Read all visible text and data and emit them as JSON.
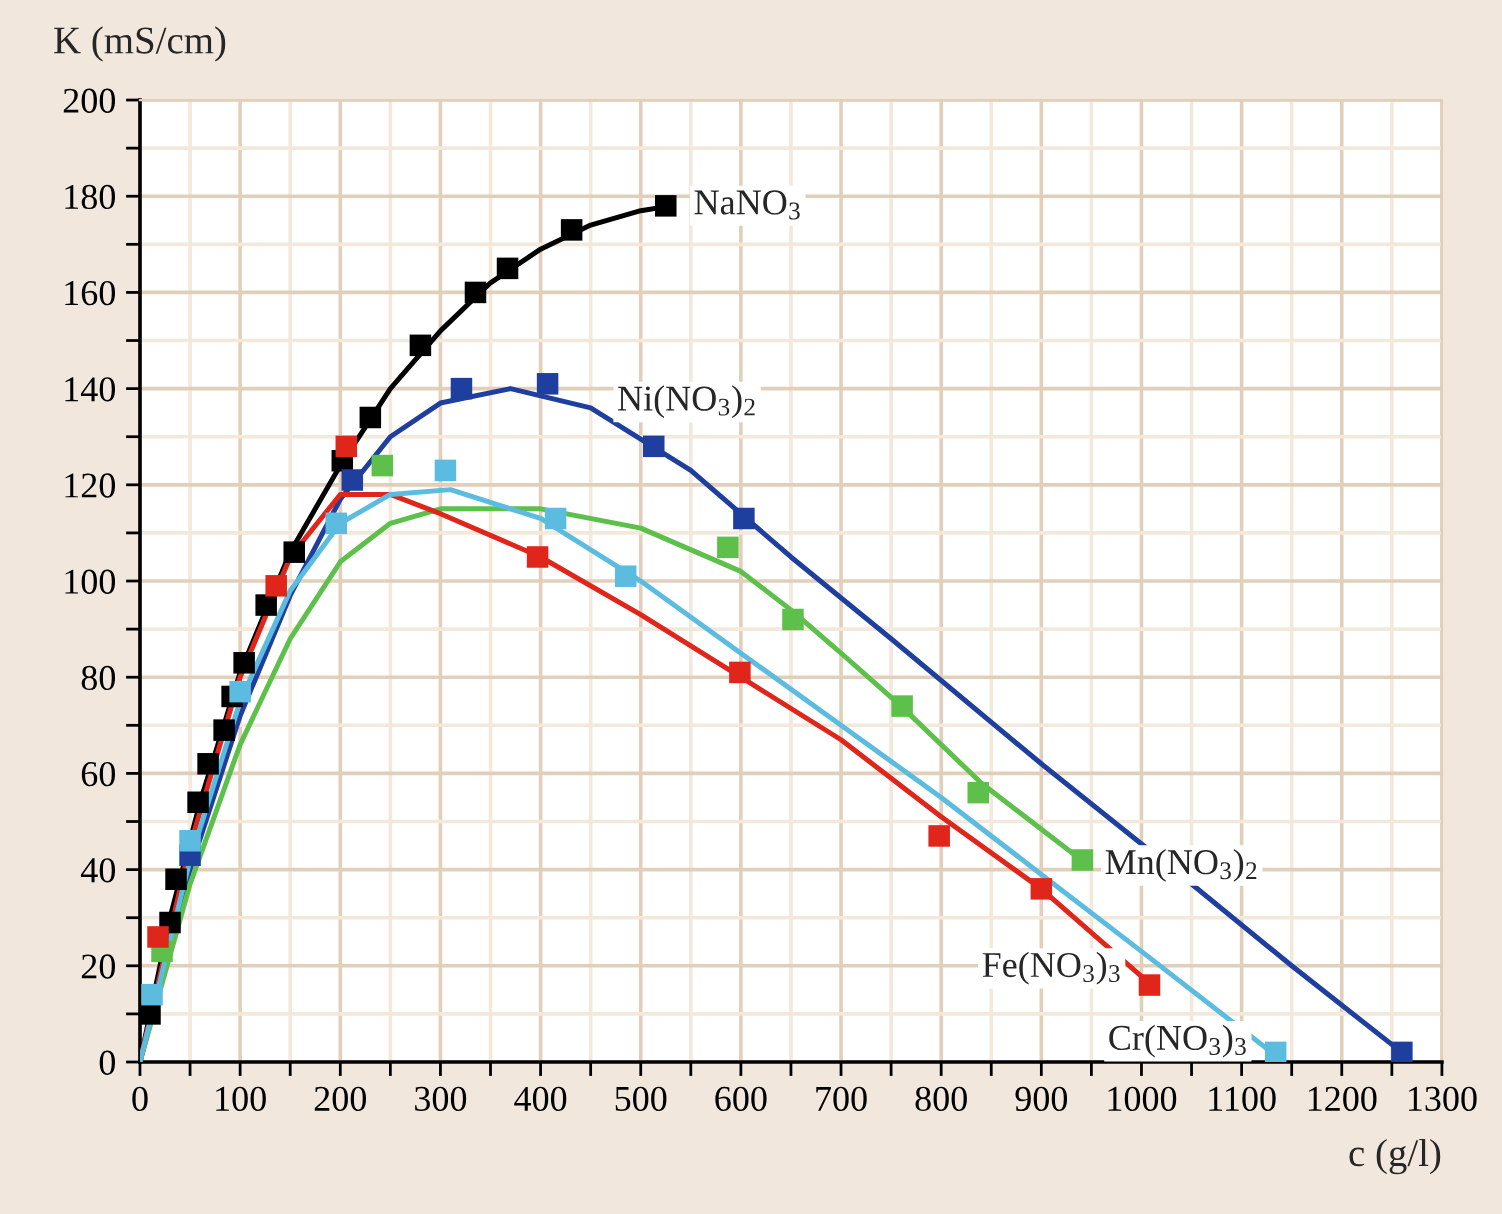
{
  "chart_data": {
    "type": "scatter",
    "xlabel": "c (g/l)",
    "ylabel": "K (mS/cm)",
    "xlim": [
      0,
      1300
    ],
    "ylim": [
      0,
      200
    ],
    "xticks": [
      0,
      {
        "value": 50,
        "label": null
      },
      100,
      {
        "value": 150,
        "label": null
      },
      200,
      {
        "value": 250,
        "label": null
      },
      300,
      {
        "value": 350,
        "label": null
      },
      400,
      {
        "value": 450,
        "label": null
      },
      500,
      {
        "value": 550,
        "label": null
      },
      600,
      {
        "value": 650,
        "label": null
      },
      700,
      {
        "value": 750,
        "label": null
      },
      800,
      {
        "value": 850,
        "label": null
      },
      900,
      {
        "value": 950,
        "label": null
      },
      1000,
      {
        "value": 1050,
        "label": null
      },
      1100,
      {
        "value": 1150,
        "label": null
      },
      1200,
      {
        "value": 1250,
        "label": null
      },
      1300
    ],
    "yticks": [
      0,
      {
        "value": 10,
        "label": null
      },
      20,
      {
        "value": 30,
        "label": null
      },
      40,
      {
        "value": 50,
        "label": null
      },
      60,
      {
        "value": 70,
        "label": null
      },
      80,
      {
        "value": 90,
        "label": null
      },
      100,
      {
        "value": 110,
        "label": null
      },
      120,
      {
        "value": 130,
        "label": null
      },
      140,
      {
        "value": 150,
        "label": null
      },
      160,
      {
        "value": 170,
        "label": null
      },
      180,
      {
        "value": 190,
        "label": null
      },
      200
    ],
    "grid": true,
    "legend": false,
    "line_style": "solid",
    "series": [
      {
        "type": "line",
        "color": "#000000",
        "marker": "none",
        "x": [
          0,
          30,
          60,
          100,
          150,
          200,
          250,
          300,
          350,
          400,
          450,
          500,
          530
        ],
        "values": [
          0,
          30,
          54,
          81,
          106,
          124,
          140,
          152,
          162,
          169,
          174,
          177,
          178
        ]
      },
      {
        "type": "line",
        "color": "#1f3f9f",
        "marker": "none",
        "x": [
          0,
          50,
          100,
          150,
          200,
          250,
          300,
          370,
          450,
          550,
          650,
          750,
          900,
          1050,
          1150,
          1260
        ],
        "values": [
          0,
          40,
          72,
          97,
          117,
          130,
          137,
          140,
          136,
          123,
          105,
          88,
          62,
          37,
          20,
          2
        ]
      },
      {
        "type": "line",
        "color": "#5dc04a",
        "marker": "none",
        "x": [
          0,
          50,
          100,
          150,
          200,
          250,
          300,
          400,
          500,
          600,
          650,
          700,
          760,
          840,
          940
        ],
        "values": [
          0,
          37,
          66,
          88,
          104,
          112,
          115,
          115,
          111,
          102,
          94,
          85,
          74,
          58,
          42
        ]
      },
      {
        "type": "line",
        "color": "#e0251b",
        "marker": "none",
        "x": [
          0,
          50,
          100,
          150,
          200,
          250,
          300,
          400,
          500,
          600,
          700,
          800,
          900,
          1010
        ],
        "values": [
          0,
          45,
          80,
          105,
          118,
          118,
          114,
          105,
          93,
          80,
          67,
          51,
          36,
          16
        ]
      },
      {
        "type": "line",
        "color": "#5bbce0",
        "marker": "none",
        "x": [
          0,
          50,
          100,
          150,
          200,
          250,
          310,
          400,
          500,
          600,
          700,
          800,
          900,
          1000,
          1130
        ],
        "values": [
          0,
          42,
          75,
          98,
          112,
          118,
          119,
          113,
          100,
          85,
          70,
          55,
          39,
          23,
          2
        ]
      },
      {
        "name": "NaNO$_{3}$",
        "color": "#000000",
        "marker": "square",
        "x": [
          10,
          30,
          36,
          58,
          68,
          84,
          92,
          104,
          126,
          154,
          202,
          230,
          280,
          335,
          367,
          431,
          525
        ],
        "values": [
          10,
          29,
          38,
          54,
          62,
          69,
          76,
          83,
          95,
          106,
          125,
          134,
          149,
          160,
          165,
          173,
          178
        ]
      },
      {
        "name": "Ni(NO$_{3}$)$_{2}$",
        "color": "#1f3f9f",
        "marker": "square",
        "x": [
          50,
          212,
          321,
          407,
          513,
          603,
          1260
        ],
        "values": [
          43,
          121,
          140,
          141,
          128,
          113,
          2
        ]
      },
      {
        "name": "Mn(NO$_{3}$)$_{2}$",
        "color": "#5dc04a",
        "marker": "square",
        "x": [
          22,
          242,
          587,
          652,
          761,
          837,
          941
        ],
        "values": [
          23,
          124,
          107,
          92,
          74,
          56,
          42
        ]
      },
      {
        "name": "Fe(NO$_{3}$)$_{3}$",
        "color": "#e0251b",
        "marker": "square",
        "x": [
          18,
          136,
          206,
          397,
          599,
          798,
          900,
          1008
        ],
        "values": [
          26,
          99,
          128,
          105,
          81,
          47,
          36,
          16
        ]
      },
      {
        "name": "Cr(NO$_{3}$)$_{3}$",
        "color": "#5bbce0",
        "marker": "square",
        "x": [
          12,
          50,
          100,
          196,
          305,
          415,
          485,
          1134
        ],
        "values": [
          14,
          46,
          77,
          112,
          123,
          113,
          101,
          2
        ]
      }
    ]
  }
}
